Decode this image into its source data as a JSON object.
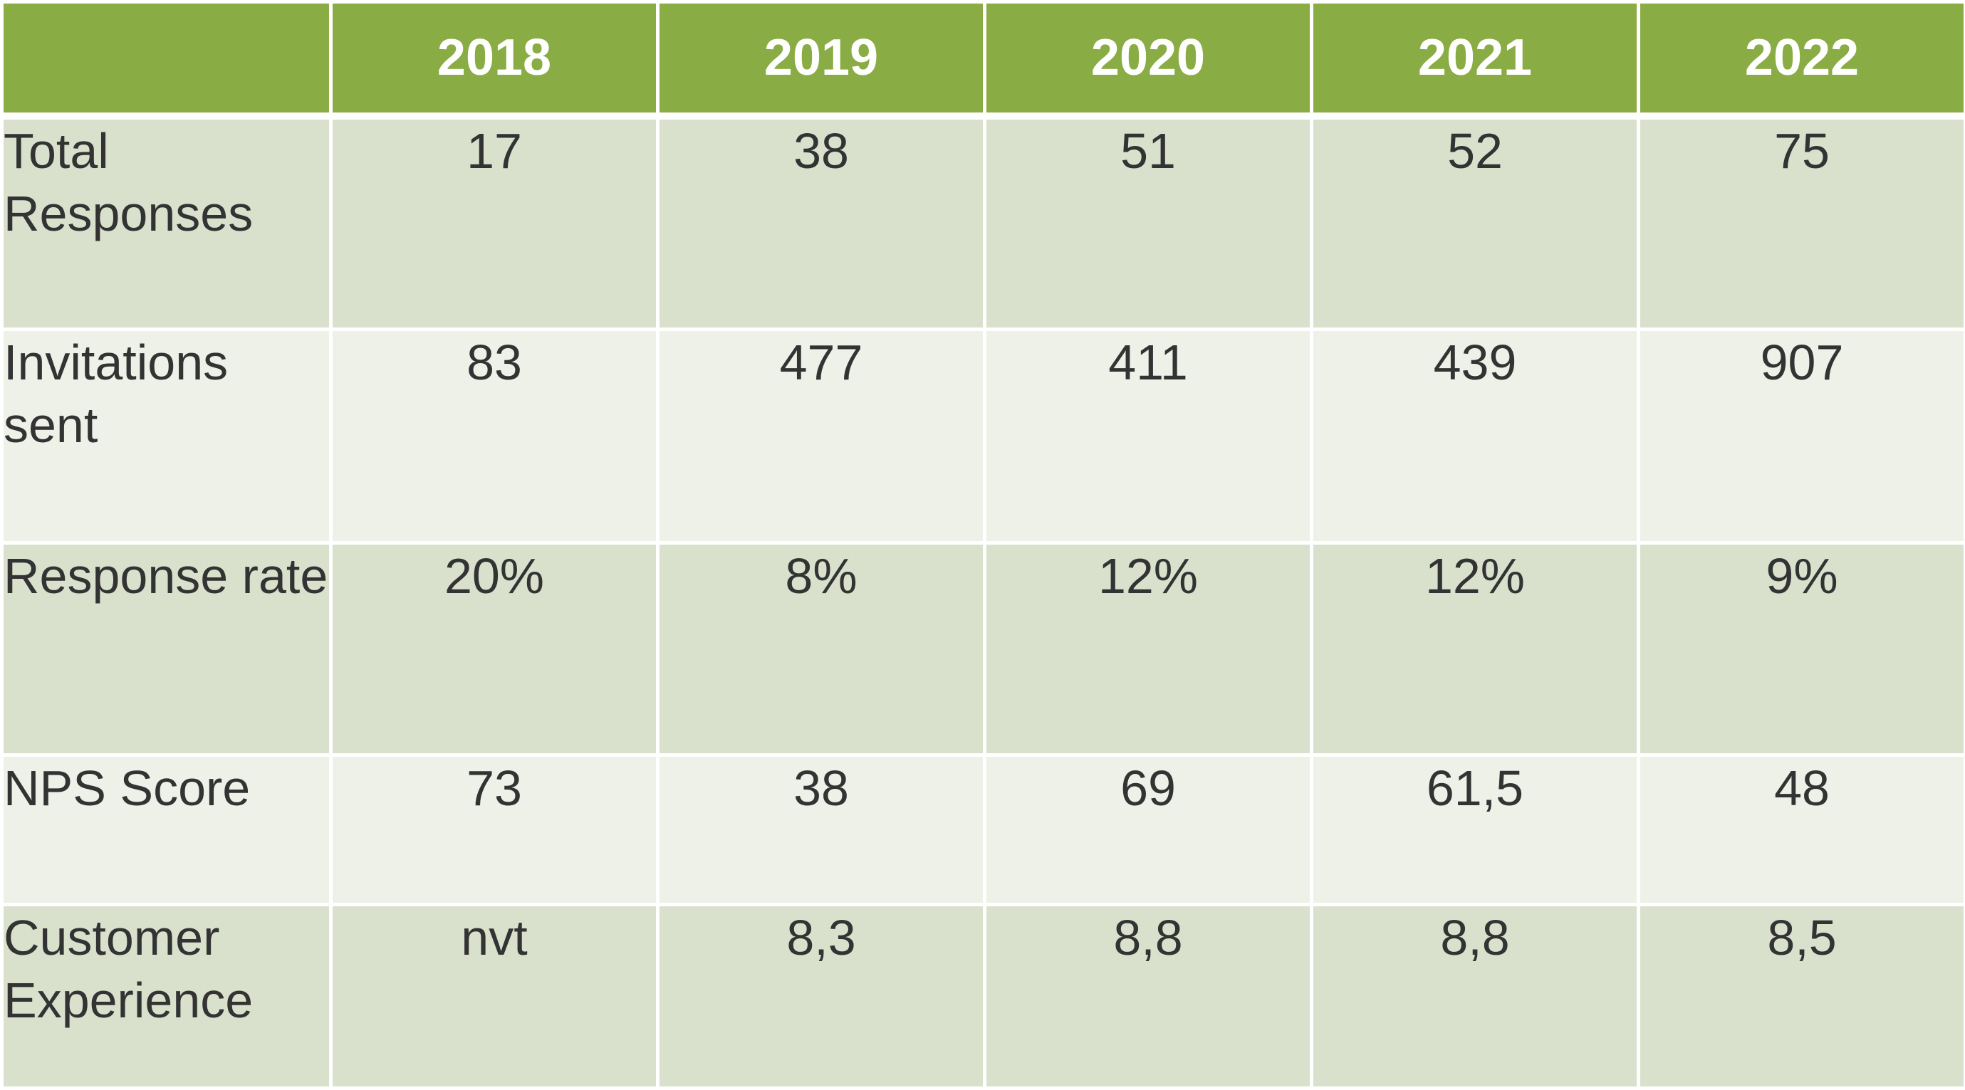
{
  "table": {
    "header": {
      "corner": "",
      "years": [
        "2018",
        "2019",
        "2020",
        "2021",
        "2022"
      ]
    },
    "rows": [
      {
        "label": "Total Responses",
        "values": [
          "17",
          "38",
          "51",
          "52",
          "75"
        ]
      },
      {
        "label": "Invitations sent",
        "values": [
          "83",
          "477",
          "411",
          "439",
          "907"
        ]
      },
      {
        "label": "Response rate",
        "values": [
          "20%",
          "8%",
          "12%",
          "12%",
          "9%"
        ]
      },
      {
        "label": "NPS Score",
        "values": [
          "73",
          "38",
          "69",
          "61,5",
          "48"
        ]
      },
      {
        "label": "Customer Experience",
        "values": [
          "nvt",
          "8,3",
          "8,8",
          "8,8",
          "8,5"
        ]
      }
    ]
  },
  "colors": {
    "header_green": "#8aac44",
    "band_dark": "#d9e1cd",
    "band_light": "#eef1e8",
    "text": "#333333"
  }
}
